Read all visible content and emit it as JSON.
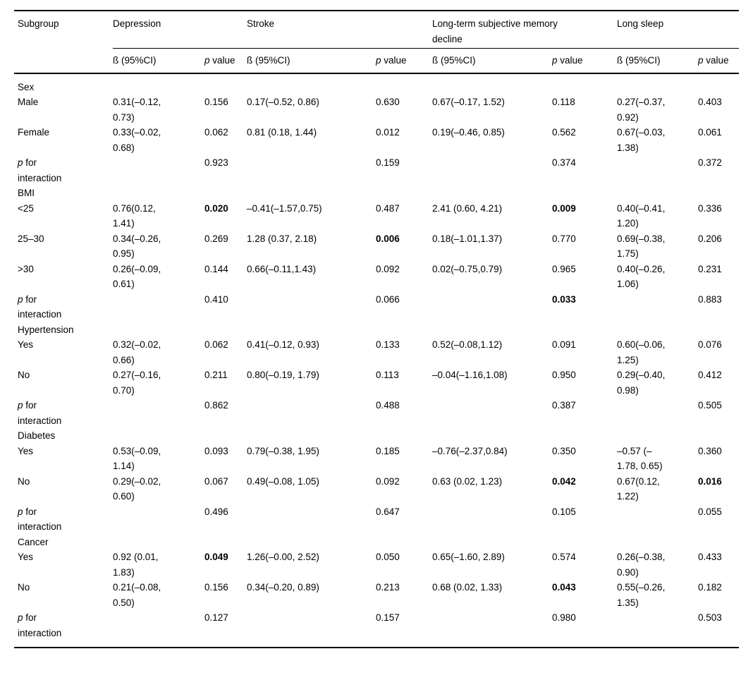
{
  "table": {
    "subgroup_header": "Subgroup",
    "beta_header": "ß (95%CI)",
    "p_header": {
      "p": "p",
      "rest": " value"
    },
    "p_interaction_label": {
      "p": "p",
      "rest": " for interaction"
    },
    "col_groups": [
      {
        "label": "Depression"
      },
      {
        "label": "Stroke"
      },
      {
        "label": "Long-term subjective memory decline"
      },
      {
        "label": "Long sleep"
      }
    ],
    "rows": [
      {
        "type": "section",
        "label": "Sex"
      },
      {
        "type": "data",
        "label": "Male",
        "cells": [
          "0.31(–0.12, 0.73)",
          "0.156",
          "0.17(–0.52, 0.86)",
          "0.630",
          "0.67(–0.17, 1.52)",
          "0.118",
          "0.27(–0.37, 0.92)",
          "0.403"
        ],
        "bold": [
          false,
          false,
          false,
          false,
          false,
          false,
          false,
          false
        ]
      },
      {
        "type": "data",
        "label": "Female",
        "cells": [
          "0.33(–0.02, 0.68)",
          "0.062",
          "0.81 (0.18, 1.44)",
          "0.012",
          "0.19(–0.46, 0.85)",
          "0.562",
          "0.67(–0.03, 1.38)",
          "0.061"
        ],
        "bold": [
          false,
          false,
          false,
          false,
          false,
          false,
          false,
          false
        ]
      },
      {
        "type": "pint",
        "cells": [
          "0.923",
          "0.159",
          "0.374",
          "0.372"
        ],
        "bold": [
          false,
          false,
          false,
          false
        ]
      },
      {
        "type": "section",
        "label": "BMI"
      },
      {
        "type": "data",
        "label": "<25",
        "cells": [
          "0.76(0.12, 1.41)",
          "0.020",
          "–0.41(–1.57,0.75)",
          "0.487",
          "2.41 (0.60, 4.21)",
          "0.009",
          "0.40(–0.41, 1.20)",
          "0.336"
        ],
        "bold": [
          false,
          true,
          false,
          false,
          false,
          true,
          false,
          false
        ]
      },
      {
        "type": "data",
        "label": "25–30",
        "cells": [
          "0.34(–0.26, 0.95)",
          "0.269",
          "1.28 (0.37, 2.18)",
          "0.006",
          "0.18(–1.01,1.37)",
          "0.770",
          "0.69(–0.38, 1.75)",
          "0.206"
        ],
        "bold": [
          false,
          false,
          false,
          true,
          false,
          false,
          false,
          false
        ]
      },
      {
        "type": "data",
        "label": ">30",
        "cells": [
          "0.26(–0.09, 0.61)",
          "0.144",
          "0.66(–0.11,1.43)",
          "0.092",
          "0.02(–0.75,0.79)",
          "0.965",
          "0.40(–0.26, 1.06)",
          "0.231"
        ],
        "bold": [
          false,
          false,
          false,
          false,
          false,
          false,
          false,
          false
        ]
      },
      {
        "type": "pint",
        "cells": [
          "0.410",
          "0.066",
          "0.033",
          "0.883"
        ],
        "bold": [
          false,
          false,
          true,
          false
        ]
      },
      {
        "type": "section",
        "label": "Hypertension"
      },
      {
        "type": "data",
        "label": "Yes",
        "cells": [
          "0.32(–0.02, 0.66)",
          "0.062",
          "0.41(–0.12, 0.93)",
          "0.133",
          "0.52(–0.08,1.12)",
          "0.091",
          "0.60(–0.06, 1.25)",
          "0.076"
        ],
        "bold": [
          false,
          false,
          false,
          false,
          false,
          false,
          false,
          false
        ]
      },
      {
        "type": "data",
        "label": "No",
        "cells": [
          "0.27(–0.16, 0.70)",
          "0.211",
          "0.80(–0.19, 1.79)",
          "0.113",
          "–0.04(–1.16,1.08)",
          "0.950",
          "0.29(–0.40, 0.98)",
          "0.412"
        ],
        "bold": [
          false,
          false,
          false,
          false,
          false,
          false,
          false,
          false
        ]
      },
      {
        "type": "pint",
        "cells": [
          "0.862",
          "0.488",
          "0.387",
          "0.505"
        ],
        "bold": [
          false,
          false,
          false,
          false
        ]
      },
      {
        "type": "section",
        "label": "Diabetes"
      },
      {
        "type": "data",
        "label": "Yes",
        "cells": [
          "0.53(–0.09, 1.14)",
          "0.093",
          "0.79(–0.38, 1.95)",
          "0.185",
          "–0.76(–2.37,0.84)",
          "0.350",
          "–0.57 (–1.78, 0.65)",
          "0.360"
        ],
        "bold": [
          false,
          false,
          false,
          false,
          false,
          false,
          false,
          false
        ]
      },
      {
        "type": "data",
        "label": "No",
        "cells": [
          "0.29(–0.02, 0.60)",
          "0.067",
          "0.49(–0.08, 1.05)",
          "0.092",
          "0.63 (0.02, 1.23)",
          "0.042",
          "0.67(0.12, 1.22)",
          "0.016"
        ],
        "bold": [
          false,
          false,
          false,
          false,
          false,
          true,
          false,
          true
        ]
      },
      {
        "type": "pint",
        "cells": [
          "0.496",
          "0.647",
          "0.105",
          "0.055"
        ],
        "bold": [
          false,
          false,
          false,
          false
        ]
      },
      {
        "type": "section",
        "label": "Cancer"
      },
      {
        "type": "data",
        "label": "Yes",
        "cells": [
          "0.92 (0.01, 1.83)",
          "0.049",
          "1.26(–0.00, 2.52)",
          "0.050",
          "0.65(–1.60, 2.89)",
          "0.574",
          "0.26(–0.38, 0.90)",
          "0.433"
        ],
        "bold": [
          false,
          true,
          false,
          false,
          false,
          false,
          false,
          false
        ]
      },
      {
        "type": "data",
        "label": "No",
        "cells": [
          "0.21(–0.08, 0.50)",
          "0.156",
          "0.34(–0.20, 0.89)",
          "0.213",
          "0.68 (0.02, 1.33)",
          "0.043",
          "0.55(–0.26, 1.35)",
          "0.182"
        ],
        "bold": [
          false,
          false,
          false,
          false,
          false,
          true,
          false,
          false
        ]
      },
      {
        "type": "pint",
        "cells": [
          "0.127",
          "0.157",
          "0.980",
          "0.503"
        ],
        "bold": [
          false,
          false,
          false,
          false
        ]
      }
    ]
  }
}
